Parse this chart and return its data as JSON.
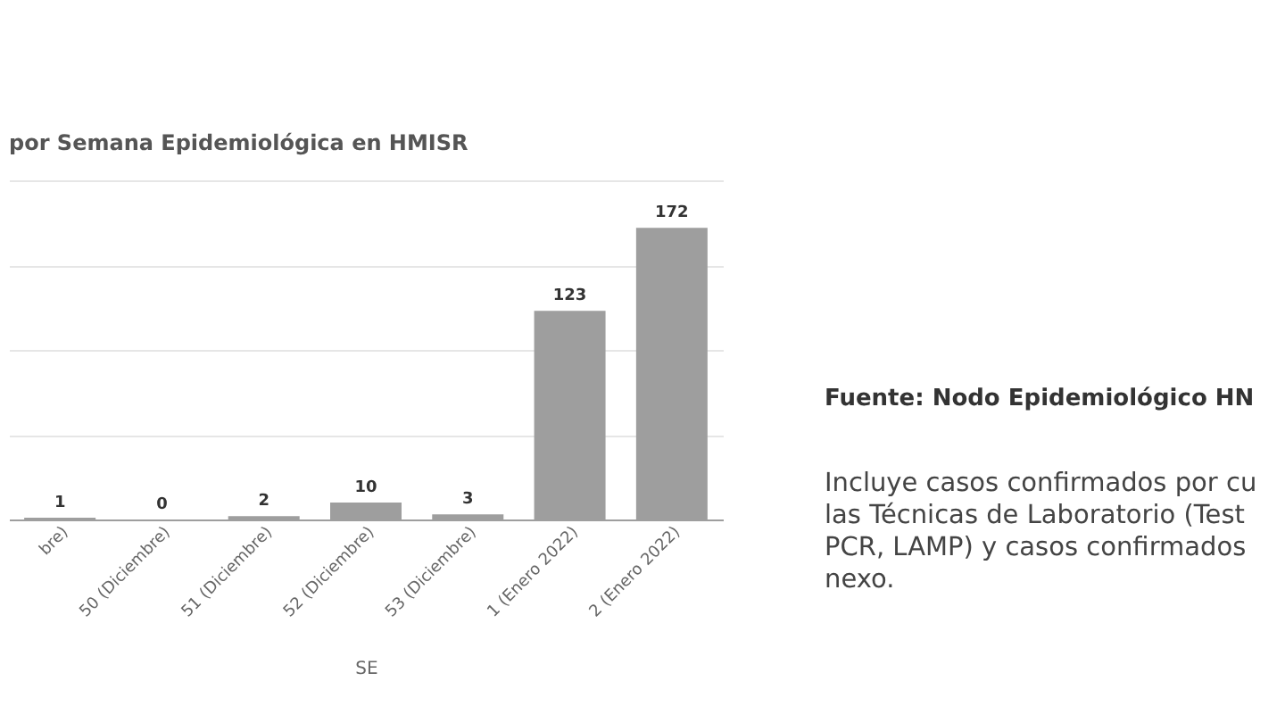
{
  "chart_data": {
    "type": "bar",
    "title": "por Semana Epidemiológica en HMISR",
    "xlabel": "SE",
    "categories": [
      "bre)",
      "50 (Diciembre)",
      "51 (Diciembre)",
      "52 (Diciembre)",
      "53 (Diciembre)",
      "1 (Enero 2022)",
      "2 (Enero 2022)"
    ],
    "values": [
      1,
      0,
      2,
      10,
      3,
      123,
      172
    ],
    "color": "#9e9e9e",
    "data_labels": true,
    "ylim": [
      0,
      200
    ],
    "yticks": [
      {
        "value": 0,
        "label": null
      },
      {
        "value": 50,
        "label": null
      },
      {
        "value": 100,
        "label": null
      },
      {
        "value": 150,
        "label": null
      },
      {
        "value": 200,
        "label": null
      }
    ],
    "grid": "y",
    "tick_labels": "x",
    "annotations": [
      "Fuente: Nodo Epidemiológico HN",
      "Incluye casos confirmados por cu",
      "las Técnicas de Laboratorio (Test",
      "PCR, LAMP) y casos confirmados",
      "nexo."
    ]
  }
}
